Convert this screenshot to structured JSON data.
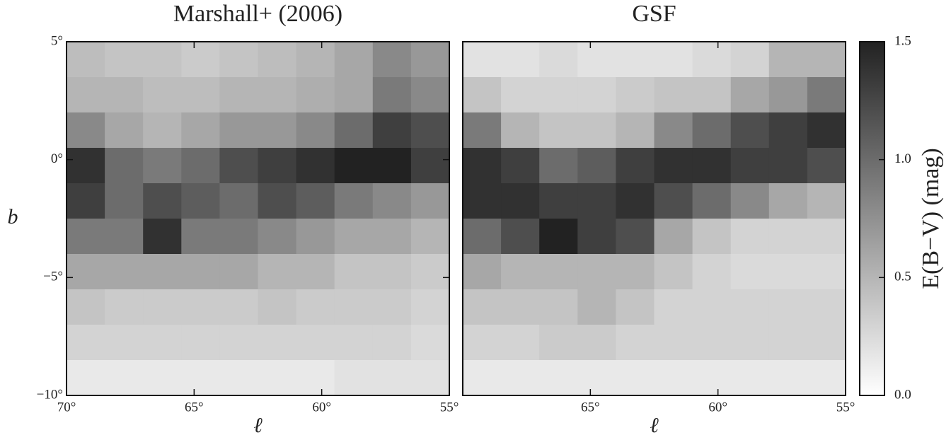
{
  "chart_data": [
    {
      "type": "heatmap",
      "title": "Marshall+ (2006)",
      "xlabel": "ℓ",
      "ylabel": "b",
      "cmap": [
        "#ffffff",
        "#222222"
      ],
      "xlim": [
        70,
        55
      ],
      "ylim": [
        -10,
        5
      ],
      "xticks": [
        {
          "value": 70,
          "label": "70°"
        },
        {
          "value": 65,
          "label": "65°"
        },
        {
          "value": 60,
          "label": "60°"
        },
        {
          "value": 55,
          "label": "55°"
        }
      ],
      "yticks": [
        {
          "value": -10,
          "label": "−10°"
        },
        {
          "value": -5,
          "label": "−5°"
        },
        {
          "value": 0,
          "label": "0°"
        },
        {
          "value": 5,
          "label": "5°"
        }
      ],
      "x": [
        69.25,
        67.75,
        66.25,
        64.75,
        63.25,
        61.75,
        60.25,
        58.75,
        57.25,
        55.75
      ],
      "y": [
        4.25,
        2.75,
        1.25,
        -0.25,
        -1.75,
        -3.25,
        -4.75,
        -6.25,
        -7.75,
        -9.25
      ],
      "z": [
        [
          0.45,
          0.4,
          0.4,
          0.35,
          0.4,
          0.45,
          0.5,
          0.6,
          0.8,
          0.7
        ],
        [
          0.5,
          0.5,
          0.45,
          0.45,
          0.5,
          0.5,
          0.55,
          0.6,
          0.9,
          0.8
        ],
        [
          0.8,
          0.6,
          0.5,
          0.6,
          0.7,
          0.7,
          0.8,
          1.0,
          1.3,
          1.2
        ],
        [
          1.4,
          1.0,
          0.9,
          1.0,
          1.2,
          1.3,
          1.4,
          1.5,
          1.5,
          1.3
        ],
        [
          1.3,
          1.0,
          1.2,
          1.1,
          1.0,
          1.2,
          1.1,
          0.9,
          0.8,
          0.7
        ],
        [
          0.9,
          0.9,
          1.4,
          0.9,
          0.9,
          0.8,
          0.7,
          0.6,
          0.6,
          0.5
        ],
        [
          0.6,
          0.6,
          0.6,
          0.6,
          0.6,
          0.5,
          0.5,
          0.4,
          0.4,
          0.35
        ],
        [
          0.4,
          0.35,
          0.35,
          0.35,
          0.35,
          0.4,
          0.35,
          0.35,
          0.35,
          0.3
        ],
        [
          0.3,
          0.3,
          0.3,
          0.3,
          0.3,
          0.3,
          0.3,
          0.3,
          0.3,
          0.25
        ],
        [
          0.15,
          0.15,
          0.15,
          0.15,
          0.15,
          0.15,
          0.15,
          0.2,
          0.2,
          0.2
        ]
      ],
      "zlim": [
        0,
        1.5
      ]
    },
    {
      "type": "heatmap",
      "title": "GSF",
      "xlabel": "ℓ",
      "cmap": [
        "#ffffff",
        "#222222"
      ],
      "xlim": [
        70,
        55
      ],
      "ylim": [
        -10,
        5
      ],
      "xticks": [
        {
          "value": 65,
          "label": "65°"
        },
        {
          "value": 60,
          "label": "60°"
        },
        {
          "value": 55,
          "label": "55°"
        }
      ],
      "x": [
        69.25,
        67.75,
        66.25,
        64.75,
        63.25,
        61.75,
        60.25,
        58.75,
        57.25,
        55.75
      ],
      "y": [
        4.25,
        2.75,
        1.25,
        -0.25,
        -1.75,
        -3.25,
        -4.75,
        -6.25,
        -7.75,
        -9.25
      ],
      "z": [
        [
          0.2,
          0.2,
          0.25,
          0.2,
          0.2,
          0.2,
          0.25,
          0.3,
          0.5,
          0.5
        ],
        [
          0.4,
          0.3,
          0.3,
          0.3,
          0.35,
          0.4,
          0.4,
          0.6,
          0.7,
          0.9
        ],
        [
          0.9,
          0.5,
          0.4,
          0.4,
          0.5,
          0.8,
          1.0,
          1.2,
          1.3,
          1.4
        ],
        [
          1.4,
          1.3,
          1.0,
          1.1,
          1.3,
          1.4,
          1.4,
          1.3,
          1.3,
          1.2
        ],
        [
          1.4,
          1.4,
          1.3,
          1.3,
          1.4,
          1.2,
          1.0,
          0.8,
          0.6,
          0.5
        ],
        [
          1.0,
          1.2,
          1.5,
          1.3,
          1.2,
          0.6,
          0.4,
          0.3,
          0.3,
          0.3
        ],
        [
          0.6,
          0.5,
          0.5,
          0.5,
          0.5,
          0.4,
          0.3,
          0.25,
          0.25,
          0.25
        ],
        [
          0.4,
          0.4,
          0.4,
          0.5,
          0.4,
          0.3,
          0.3,
          0.3,
          0.3,
          0.3
        ],
        [
          0.3,
          0.3,
          0.35,
          0.35,
          0.3,
          0.3,
          0.3,
          0.3,
          0.3,
          0.3
        ],
        [
          0.15,
          0.15,
          0.15,
          0.15,
          0.15,
          0.15,
          0.15,
          0.15,
          0.15,
          0.15
        ]
      ],
      "zlim": [
        0,
        1.5
      ],
      "zticks": [
        {
          "value": 0,
          "label": "0.0"
        },
        {
          "value": 0.5,
          "label": "0.5"
        },
        {
          "value": 1,
          "label": "1.0"
        },
        {
          "value": 1.5,
          "label": "1.5"
        }
      ],
      "zlabel": "E(B−V) (mag)"
    }
  ]
}
